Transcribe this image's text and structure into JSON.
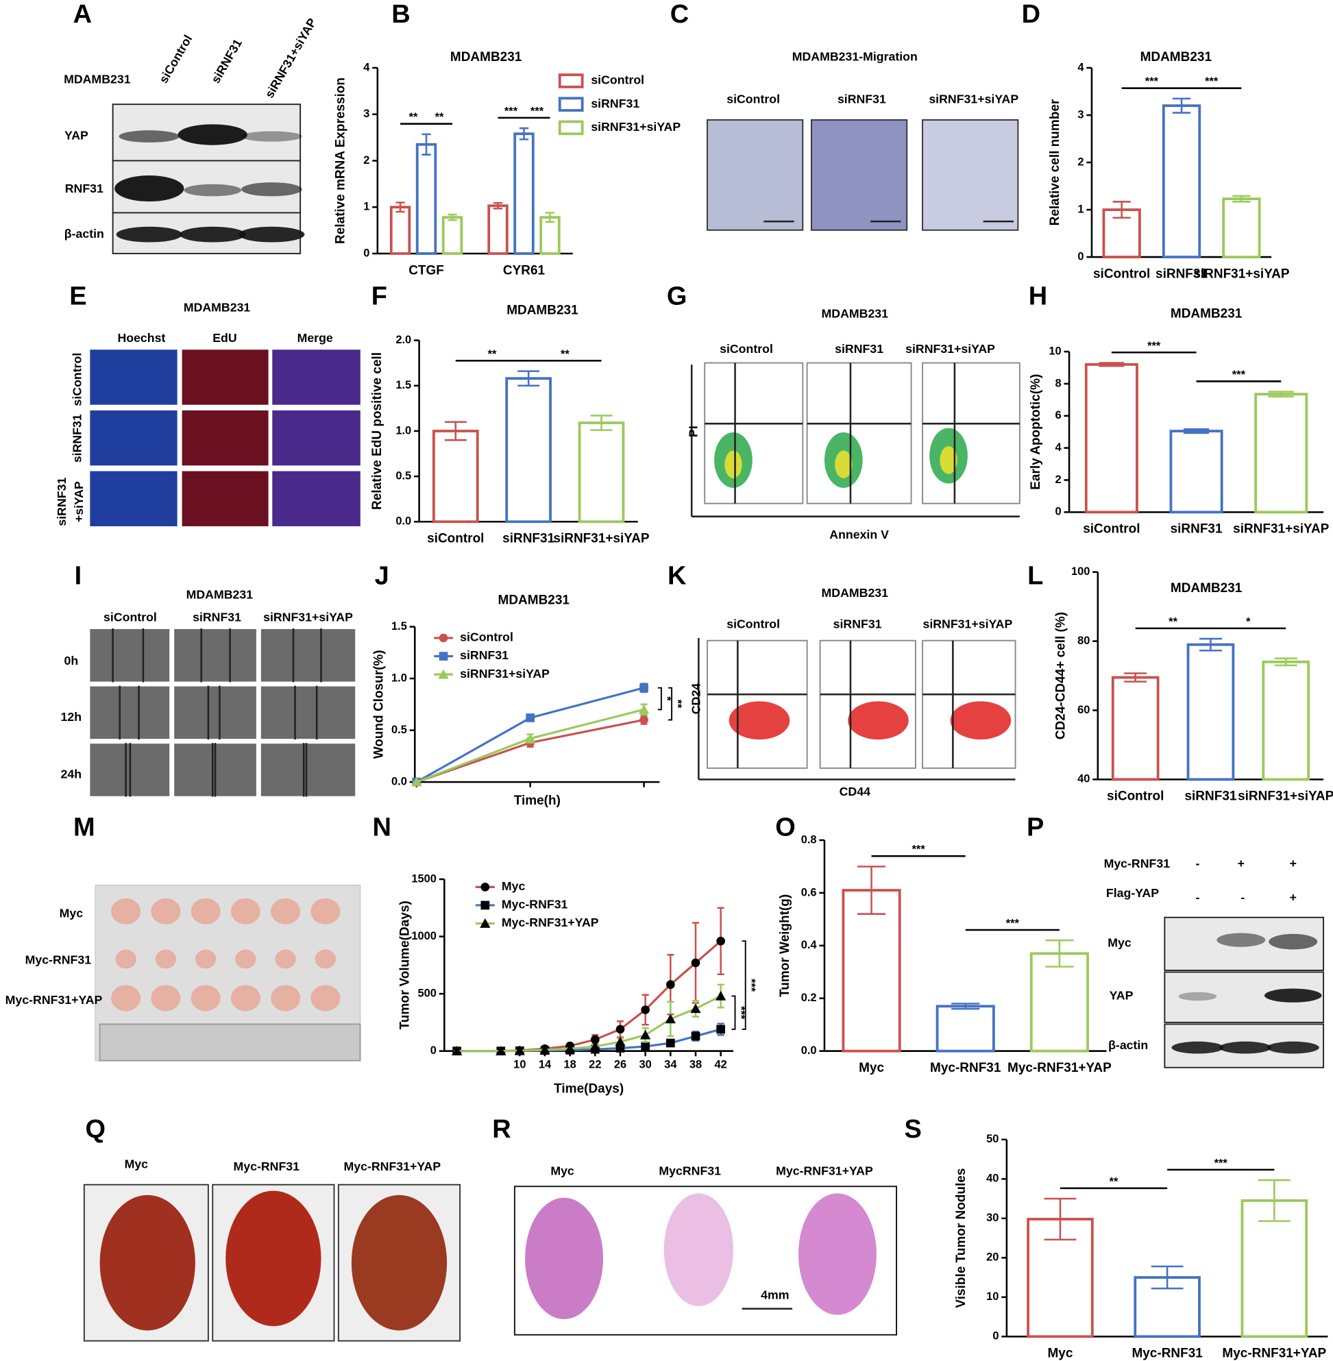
{
  "chart_data": [
    {
      "type": "bar",
      "panel": "B",
      "title": "MDAMB231",
      "ylabel": "Relative mRNA Expression",
      "categories": [
        "CTGF",
        "CYR61"
      ],
      "series": [
        {
          "name": "siControl",
          "color": "#c9514f",
          "values": [
            1.0,
            1.03
          ],
          "errors": [
            0.1,
            0.06
          ]
        },
        {
          "name": "siRNF31",
          "color": "#4472c4",
          "values": [
            2.35,
            2.58
          ],
          "errors": [
            0.22,
            0.12
          ]
        },
        {
          "name": "siRNF31+siYAP",
          "color": "#9bc95a",
          "values": [
            0.78,
            0.78
          ],
          "errors": [
            0.06,
            0.1
          ]
        }
      ],
      "ylim": [
        0,
        4
      ],
      "yticks": [
        0,
        1,
        2,
        3,
        4
      ],
      "annotations": [
        "**",
        "**",
        "***",
        "***"
      ]
    },
    {
      "type": "bar",
      "panel": "D",
      "title": "MDAMB231",
      "ylabel": "Relative cell number",
      "categories": [
        "siControl",
        "siRNF31",
        "siRNF31+siYAP"
      ],
      "values": [
        1.0,
        3.2,
        1.23
      ],
      "errors": [
        0.17,
        0.15,
        0.06
      ],
      "colors": [
        "#c9514f",
        "#4472c4",
        "#9bc95a"
      ],
      "ylim": [
        0,
        4
      ],
      "yticks": [
        0,
        1,
        2,
        3,
        4
      ],
      "annotations": [
        "***",
        "***"
      ]
    },
    {
      "type": "bar",
      "panel": "F",
      "title": "MDAMB231",
      "ylabel": "Relative EdU positive cell",
      "categories": [
        "siControl",
        "siRNF31",
        "siRNF31+siYAP"
      ],
      "values": [
        1.0,
        1.58,
        1.09
      ],
      "errors": [
        0.1,
        0.08,
        0.08
      ],
      "colors": [
        "#c9514f",
        "#4472c4",
        "#9bc95a"
      ],
      "ylim": [
        0,
        2
      ],
      "yticks": [
        {
          "value": 0,
          "label": "0.0"
        },
        0.5,
        {
          "value": 1,
          "label": "1.0"
        },
        1.5,
        {
          "value": 2,
          "label": "2.0"
        }
      ],
      "annotations": [
        "**",
        "**"
      ]
    },
    {
      "type": "bar",
      "panel": "H",
      "title": "MDAMB231",
      "ylabel": "Early Apoptotic(%)",
      "categories": [
        "siControl",
        "siRNF31",
        "siRNF31+siYAP"
      ],
      "values": [
        9.2,
        5.05,
        7.35
      ],
      "errors": [
        0.1,
        0.12,
        0.15
      ],
      "colors": [
        "#c9514f",
        "#4472c4",
        "#9bc95a"
      ],
      "ylim": [
        0,
        10
      ],
      "yticks": [
        0,
        2,
        4,
        6,
        8,
        10
      ],
      "annotations": [
        "***",
        "***"
      ]
    },
    {
      "type": "line",
      "panel": "J",
      "title": "MDAMB231",
      "ylabel": "Wound Closur(%)",
      "xlabel": "Time(h)",
      "categories": [
        null,
        null,
        null
      ],
      "series": [
        {
          "name": "siControl",
          "color": "#c9514f",
          "marker": "circle",
          "values": [
            0,
            0.38,
            0.6
          ],
          "errors": [
            0,
            0.04,
            0.04
          ]
        },
        {
          "name": "siRNF31",
          "color": "#4472c4",
          "marker": "square",
          "values": [
            0,
            0.62,
            0.91
          ],
          "errors": [
            0,
            0.03,
            0.04
          ]
        },
        {
          "name": "siRNF31+siYAP",
          "color": "#9bc95a",
          "marker": "triangle",
          "values": [
            0,
            0.42,
            0.7
          ],
          "errors": [
            0,
            0.04,
            0.05
          ]
        }
      ],
      "ylim": [
        0,
        1.5
      ],
      "yticks": [
        {
          "value": 0,
          "label": "0.0"
        },
        0.5,
        {
          "value": 1,
          "label": "1.0"
        },
        1.5
      ],
      "annotations": [
        "*",
        "**"
      ]
    },
    {
      "type": "bar",
      "panel": "L",
      "title": "MDAMB231",
      "ylabel": "CD24-CD44+ cell (%)",
      "categories": [
        "siControl",
        "siRNF31",
        "siRNF31+siYAP"
      ],
      "values": [
        69.5,
        79,
        74
      ],
      "errors": [
        1.2,
        1.7,
        1.0
      ],
      "colors": [
        "#c9514f",
        "#4472c4",
        "#9bc95a"
      ],
      "ylim": [
        40,
        100
      ],
      "yticks": [
        40,
        60,
        80,
        100
      ],
      "annotations": [
        "**",
        "*"
      ]
    },
    {
      "type": "line",
      "panel": "N",
      "ylabel": "Tumor Volume(Days)",
      "xlabel": "Time(Days)",
      "marker_color": "#000000",
      "x": [
        0,
        7,
        10,
        14,
        18,
        22,
        26,
        30,
        34,
        38,
        42
      ],
      "xlim": [
        -2,
        44
      ],
      "xticks": [
        10,
        14,
        18,
        22,
        26,
        30,
        34,
        38,
        42
      ],
      "series": [
        {
          "name": "Myc",
          "color": "#c9514f",
          "marker": "circle",
          "values": [
            0,
            0,
            5,
            20,
            45,
            100,
            190,
            360,
            580,
            770,
            960
          ],
          "errors": [
            0,
            0,
            0,
            5,
            10,
            40,
            70,
            130,
            260,
            350,
            290
          ]
        },
        {
          "name": "Myc-RNF31",
          "color": "#4472c4",
          "marker": "square",
          "values": [
            0,
            0,
            2,
            5,
            8,
            15,
            25,
            40,
            70,
            130,
            190
          ],
          "errors": [
            0,
            0,
            0,
            2,
            3,
            5,
            8,
            15,
            25,
            40,
            50
          ]
        },
        {
          "name": "Myc-RNF31+YAP",
          "color": "#9bc95a",
          "marker": "triangle",
          "values": [
            0,
            0,
            3,
            10,
            20,
            40,
            80,
            140,
            280,
            370,
            480
          ],
          "errors": [
            0,
            0,
            0,
            3,
            5,
            10,
            30,
            60,
            150,
            70,
            100
          ]
        }
      ],
      "ylim": [
        0,
        1500
      ],
      "yticks": [
        0,
        500,
        1000,
        1500
      ],
      "annotations": [
        "***",
        "***"
      ]
    },
    {
      "type": "bar",
      "panel": "O",
      "ylabel": "Tumor Weight(g)",
      "categories": [
        "Myc",
        "Myc-RNF31",
        "Myc-RNF31+YAP"
      ],
      "values": [
        0.61,
        0.17,
        0.37
      ],
      "errors": [
        0.09,
        0.01,
        0.05
      ],
      "colors": [
        "#c9514f",
        "#4472c4",
        "#9bc95a"
      ],
      "ylim": [
        0,
        0.8
      ],
      "yticks": [
        {
          "value": 0,
          "label": "0.0"
        },
        0.2,
        0.4,
        0.6,
        0.8
      ],
      "annotations": [
        "***",
        "***"
      ]
    },
    {
      "type": "bar",
      "panel": "S",
      "ylabel": "Visible Tumor Nodules",
      "categories": [
        "Myc",
        "Myc-RNF31",
        "Myc-RNF31+YAP"
      ],
      "values": [
        29.8,
        15,
        34.5
      ],
      "errors": [
        5.2,
        2.8,
        5.2
      ],
      "colors": [
        "#c9514f",
        "#4472c4",
        "#9bc95a"
      ],
      "ylim": [
        0,
        50
      ],
      "yticks": [
        0,
        10,
        20,
        30,
        40,
        50
      ],
      "annotations": [
        "**",
        "***"
      ]
    }
  ],
  "image_panels": [
    {
      "letter": "A",
      "texts": [
        "MDAMB231",
        "siControl",
        "siRNF31",
        "siRNF31+siYAP",
        "YAP",
        "RNF31",
        "β-actin"
      ]
    },
    {
      "letter": "C",
      "texts": [
        "MDAMB231-Migration",
        "siControl",
        "siRNF31",
        "siRNF31+siYAP"
      ]
    },
    {
      "letter": "E",
      "texts": [
        "MDAMB231",
        "Hoechst",
        "EdU",
        "Merge",
        "siControl",
        "siRNF31",
        "siRNF31",
        "+siYAP"
      ]
    },
    {
      "letter": "G",
      "texts": [
        "MDAMB231",
        "siControl",
        "siRNF31",
        "siRNF31+siYAP",
        "PI",
        "Annexin V"
      ]
    },
    {
      "letter": "I",
      "texts": [
        "MDAMB231",
        "siControl",
        "siRNF31",
        "siRNF31+siYAP",
        "0h",
        "12h",
        "24h"
      ]
    },
    {
      "letter": "K",
      "texts": [
        "MDAMB231",
        "siControl",
        "siRNF31",
        "siRNF31+siYAP",
        "CD24",
        "CD44"
      ]
    },
    {
      "letter": "M",
      "texts": [
        "Myc",
        "Myc-RNF31",
        "Myc-RNF31+YAP"
      ]
    },
    {
      "letter": "P",
      "texts": [
        "Myc-RNF31",
        "-",
        "+",
        "+",
        "Flag-YAP",
        "-",
        "-",
        "+",
        "Myc",
        "YAP",
        "β-actin"
      ]
    },
    {
      "letter": "Q",
      "texts": [
        "Myc",
        "Myc-RNF31",
        "Myc-RNF31+YAP"
      ]
    },
    {
      "letter": "R",
      "texts": [
        "Myc",
        "MycRNF31",
        "Myc-RNF31+YAP",
        "4mm"
      ]
    }
  ]
}
